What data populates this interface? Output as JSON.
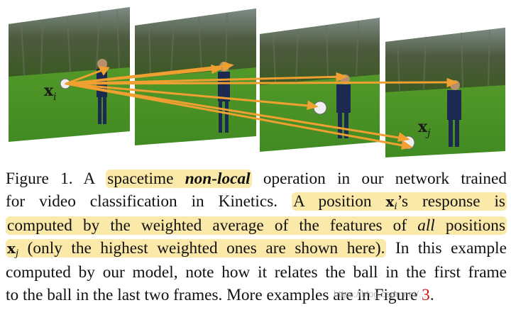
{
  "figure": {
    "label_xi": "x",
    "label_xi_sub": "i",
    "label_xj": "x",
    "label_xj_sub": "j",
    "arrow_color": "#f0a030"
  },
  "caption": {
    "l1_a": "Figure 1. A ",
    "l1_hl_a": "spacetime ",
    "l1_hl_b": "non-local",
    "l1_b": " operation in our network trained",
    "l2_a": "for video classification in Kinetics. ",
    "l2_hl": "A position ",
    "l2_x": "x",
    "l2_sub": "i",
    "l2_hl_b": "’s response is",
    "l3_hl_a": "computed by the weighted average of the features of ",
    "l3_hl_all": "all",
    "l3_hl_b": " positions",
    "l4_x": "x",
    "l4_sub": "j",
    "l4_hl": " (only the highest weighted ones are shown here).",
    "l4_b": " In this example",
    "l5": "computed by our model, note how it relates the ball in the first frame",
    "l6_a": "to the ball in the last two frames. More examples are in Figure ",
    "l6_ref": "3",
    "l6_b": ".",
    "highlight_color": "#fbe9a9",
    "ref_color": "#d01010"
  },
  "watermark": "https://blog.csdn.net/..."
}
